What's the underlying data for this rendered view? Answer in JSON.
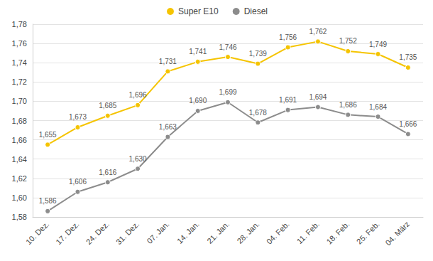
{
  "chart_data": {
    "type": "line",
    "categories": [
      "10. Dez.",
      "17. Dez.",
      "24. Dez.",
      "31. Dez.",
      "07. Jan.",
      "14. Jan.",
      "21. Jan.",
      "28. Jan.",
      "04. Feb.",
      "11. Feb.",
      "18. Feb.",
      "25. Feb.",
      "04. März"
    ],
    "series": [
      {
        "name": "Super E10",
        "color": "#f5c400",
        "values": [
          1.655,
          1.673,
          1.685,
          1.696,
          1.731,
          1.741,
          1.746,
          1.739,
          1.756,
          1.762,
          1.752,
          1.749,
          1.735
        ],
        "value_labels": [
          "1,655",
          "1,673",
          "1,685",
          "1,696",
          "1,731",
          "1,741",
          "1,746",
          "1,739",
          "1,756",
          "1,762",
          "1,752",
          "1,749",
          "1,735"
        ]
      },
      {
        "name": "Diesel",
        "color": "#8c8c8c",
        "values": [
          1.586,
          1.606,
          1.616,
          1.63,
          1.663,
          1.69,
          1.699,
          1.678,
          1.691,
          1.694,
          1.686,
          1.684,
          1.666
        ],
        "value_labels": [
          "1,586",
          "1,606",
          "1,616",
          "1,630",
          "1,663",
          "1,690",
          "1,699",
          "1,678",
          "1,691",
          "1,694",
          "1,686",
          "1,684",
          "1,666"
        ]
      }
    ],
    "ylim": [
      1.58,
      1.78
    ],
    "yticks": [
      {
        "value": 1.58,
        "label": "1,58"
      },
      {
        "value": 1.6,
        "label": "1,60"
      },
      {
        "value": 1.62,
        "label": "1,62"
      },
      {
        "value": 1.64,
        "label": "1,64"
      },
      {
        "value": 1.66,
        "label": "1,66"
      },
      {
        "value": 1.68,
        "label": "1,68"
      },
      {
        "value": 1.7,
        "label": "1,70"
      },
      {
        "value": 1.72,
        "label": "1,72"
      },
      {
        "value": 1.74,
        "label": "1,74"
      },
      {
        "value": 1.76,
        "label": "1,76"
      },
      {
        "value": 1.78,
        "label": "1,78"
      }
    ],
    "grid": true,
    "legend": "top",
    "data_labels": true,
    "marker": "circle"
  }
}
